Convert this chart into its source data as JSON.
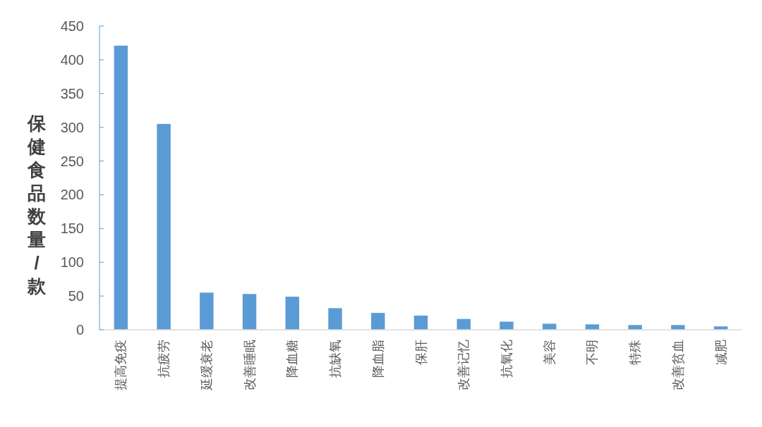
{
  "chart_data": {
    "type": "bar",
    "ylabel": "保健食品数量/款",
    "categories": [
      "提高免疫",
      "抗疲劳",
      "延缓衰老",
      "改善睡眠",
      "降血糖",
      "抗缺氧",
      "降血脂",
      "保肝",
      "改善记忆",
      "抗氧化",
      "美容",
      "不明",
      "特殊",
      "改善贫血",
      "减肥"
    ],
    "values": [
      421,
      305,
      55,
      53,
      49,
      32,
      25,
      21,
      16,
      12,
      9,
      8,
      7,
      7,
      5
    ],
    "color": "#5b9bd5",
    "ylim": [
      0,
      450
    ],
    "yticks": [
      0,
      50,
      100,
      150,
      200,
      250,
      300,
      350,
      400,
      450
    ],
    "grid": false
  }
}
